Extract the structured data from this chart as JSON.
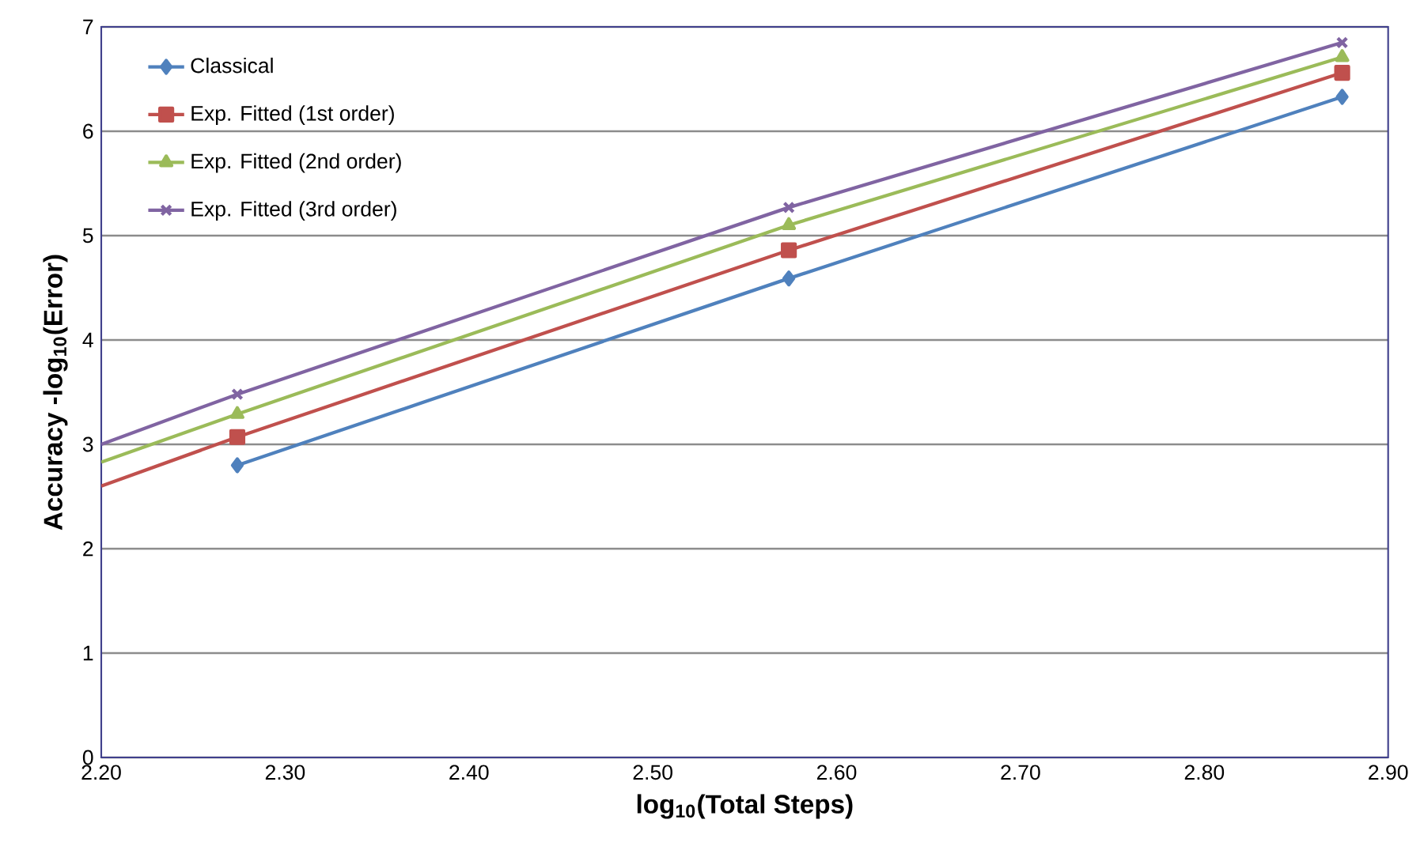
{
  "chart_data": {
    "type": "line",
    "xlabel": "log$_{10}$(Total Steps)",
    "ylabel": "Accuracy -log$_{10}$(Error)",
    "xlim": [
      2.2,
      2.9
    ],
    "xticks": [
      {
        "value": 2.2,
        "label": "2.20"
      },
      {
        "value": 2.3,
        "label": "2.30"
      },
      {
        "value": 2.4,
        "label": "2.40"
      },
      {
        "value": 2.5,
        "label": "2.50"
      },
      {
        "value": 2.6,
        "label": "2.60"
      },
      {
        "value": 2.7,
        "label": "2.70"
      },
      {
        "value": 2.8,
        "label": "2.80"
      },
      {
        "value": 2.9,
        "label": "2.90"
      }
    ],
    "ylim": [
      0,
      7
    ],
    "yticks": [
      0,
      1,
      2,
      3,
      4,
      5,
      6,
      7
    ],
    "grid": "y",
    "legend": "top left",
    "series": [
      {
        "name": "Classical",
        "color": "#4f81bd",
        "marker": "diamond",
        "x": [
          2.274,
          2.574,
          2.875
        ],
        "values": [
          2.8,
          4.59,
          6.33
        ]
      },
      {
        "name": "Exp. Fitted (1st order)",
        "color": "#c0504d",
        "marker": "square",
        "x": [
          2.274,
          2.574,
          2.875
        ],
        "values": [
          3.07,
          4.86,
          6.56
        ]
      },
      {
        "name": "Exp. Fitted (2nd order)",
        "color": "#9bbb59",
        "marker": "triangle",
        "x": [
          2.274,
          2.574,
          2.875
        ],
        "values": [
          3.29,
          5.1,
          6.71
        ]
      },
      {
        "name": "Exp. Fitted (3rd order)",
        "color": "#8064a2",
        "marker": "cross",
        "x": [
          2.274,
          2.574,
          2.875
        ],
        "values": [
          3.48,
          5.27,
          6.85
        ]
      },
      {
        "type": "line",
        "color": "#c0504d",
        "marker": "none",
        "x": [
          2.2,
          2.274
        ],
        "values": [
          2.6,
          3.07
        ]
      },
      {
        "type": "line",
        "color": "#9bbb59",
        "marker": "none",
        "x": [
          2.2,
          2.274
        ],
        "values": [
          2.83,
          3.29
        ]
      },
      {
        "type": "line",
        "color": "#8064a2",
        "marker": "none",
        "x": [
          2.2,
          2.274
        ],
        "values": [
          3.0,
          3.48
        ]
      }
    ]
  }
}
